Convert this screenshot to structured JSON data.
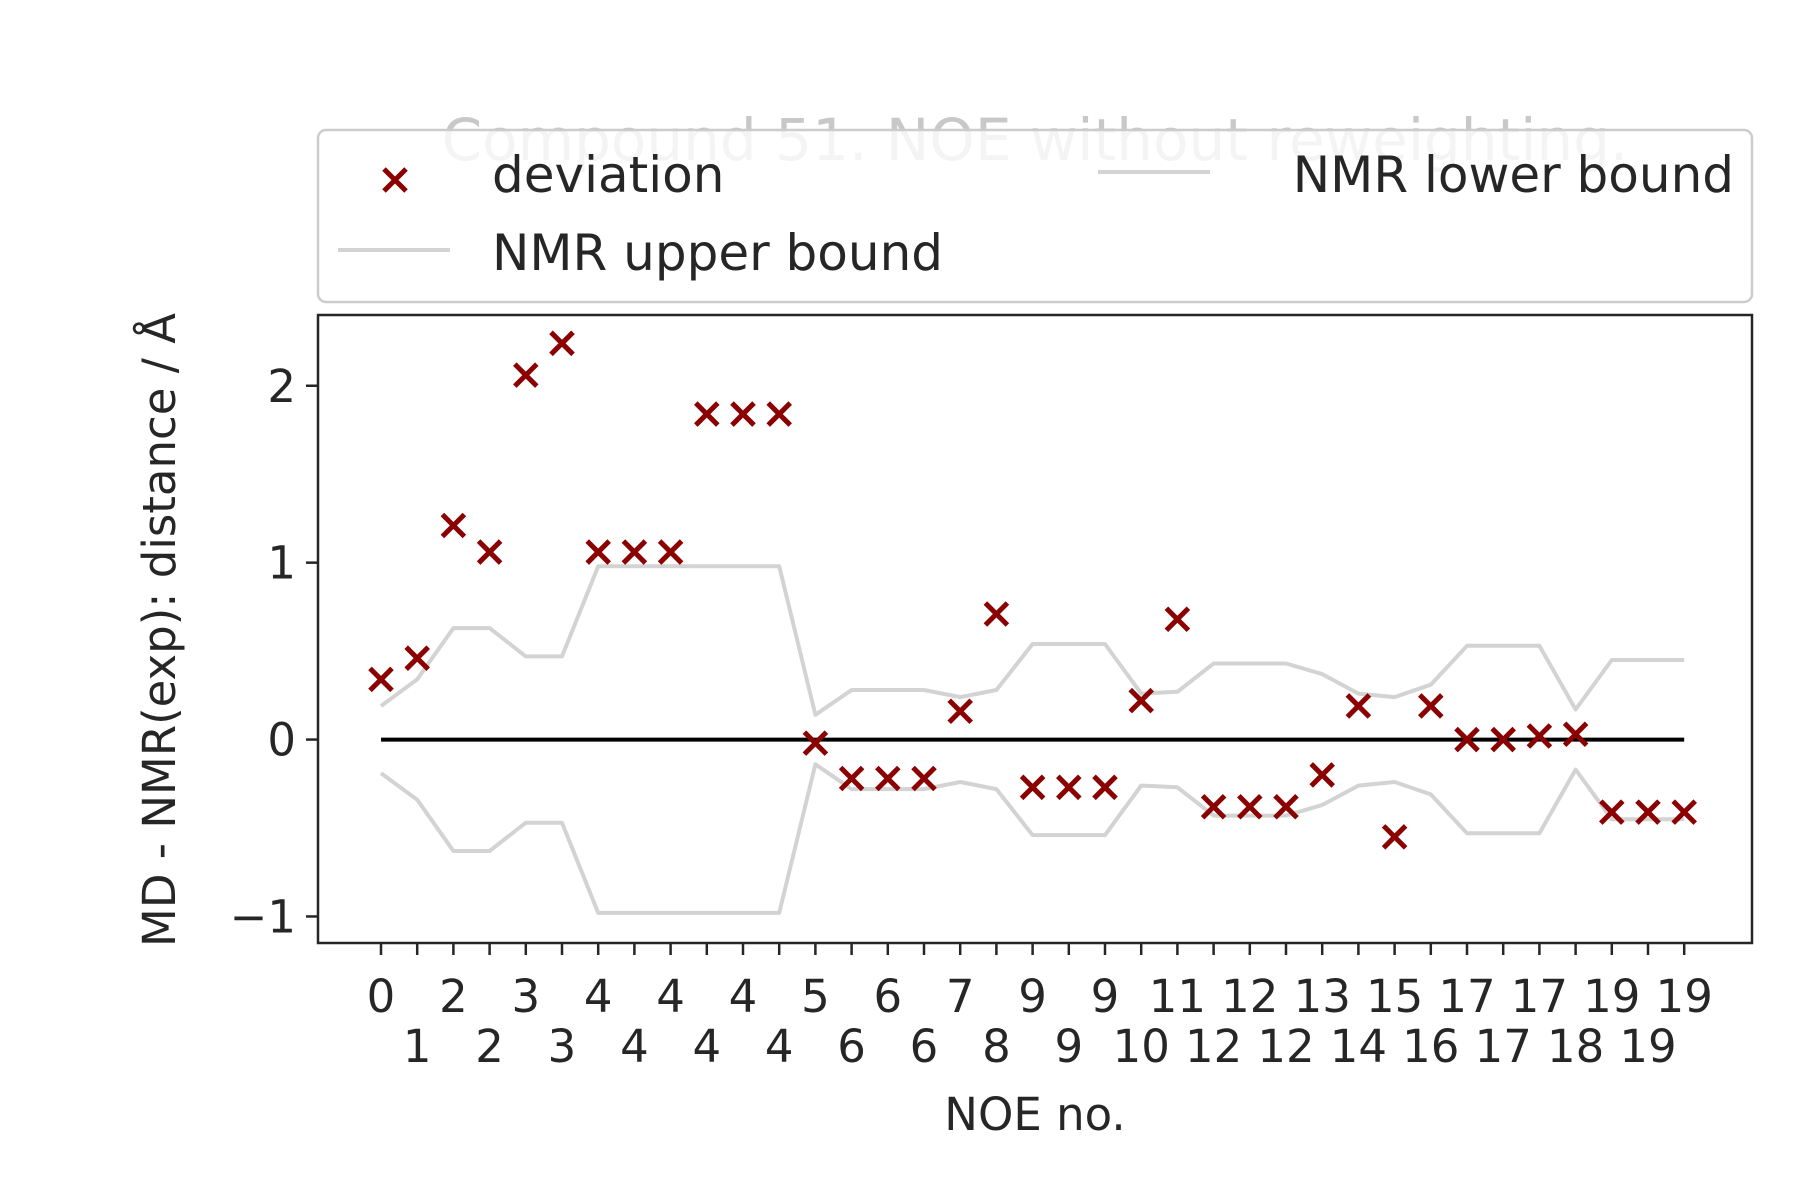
{
  "chart_data": {
    "type": "scatter",
    "title": "Compound 51. NOE without reweighting.",
    "xlabel": "NOE no.",
    "ylabel": "MD - NMR(exp): distance / Å",
    "ylim": [
      -1.15,
      2.4
    ],
    "yticks": [
      -1,
      0,
      1,
      2
    ],
    "ytick_labels": [
      "−1",
      "0",
      "1",
      "2"
    ],
    "grid": false,
    "legend_placement": "above plot, two columns",
    "colors": {
      "deviation": "#8b0000",
      "bounds": "#d3d3d3",
      "zero_line": "#000000",
      "frame": "#262626"
    },
    "xticks": [
      {
        "label": "0",
        "row": 0
      },
      {
        "label": "1",
        "row": 1
      },
      {
        "label": "2",
        "row": 0
      },
      {
        "label": "2",
        "row": 1
      },
      {
        "label": "3",
        "row": 0
      },
      {
        "label": "3",
        "row": 1
      },
      {
        "label": "4",
        "row": 0
      },
      {
        "label": "4",
        "row": 1
      },
      {
        "label": "4",
        "row": 0
      },
      {
        "label": "4",
        "row": 1
      },
      {
        "label": "4",
        "row": 0
      },
      {
        "label": "4",
        "row": 1
      },
      {
        "label": "5",
        "row": 0
      },
      {
        "label": "6",
        "row": 1
      },
      {
        "label": "6",
        "row": 0
      },
      {
        "label": "6",
        "row": 1
      },
      {
        "label": "7",
        "row": 0
      },
      {
        "label": "8",
        "row": 1
      },
      {
        "label": "9",
        "row": 0
      },
      {
        "label": "9",
        "row": 1
      },
      {
        "label": "9",
        "row": 0
      },
      {
        "label": "10",
        "row": 1
      },
      {
        "label": "11",
        "row": 0
      },
      {
        "label": "12",
        "row": 1
      },
      {
        "label": "12",
        "row": 0
      },
      {
        "label": "12",
        "row": 1
      },
      {
        "label": "13",
        "row": 0
      },
      {
        "label": "14",
        "row": 1
      },
      {
        "label": "15",
        "row": 0
      },
      {
        "label": "16",
        "row": 1
      },
      {
        "label": "17",
        "row": 0
      },
      {
        "label": "17",
        "row": 1
      },
      {
        "label": "17",
        "row": 0
      },
      {
        "label": "18",
        "row": 1
      },
      {
        "label": "19",
        "row": 0
      },
      {
        "label": "19",
        "row": 1
      },
      {
        "label": "19",
        "row": 0
      }
    ],
    "series": [
      {
        "name": "deviation",
        "marker": "x",
        "values": [
          0.34,
          0.46,
          1.21,
          1.06,
          2.06,
          2.24,
          1.06,
          1.06,
          1.06,
          1.84,
          1.84,
          1.84,
          -0.02,
          -0.22,
          -0.22,
          -0.22,
          0.16,
          0.71,
          -0.27,
          -0.27,
          -0.27,
          0.22,
          0.68,
          -0.38,
          -0.38,
          -0.38,
          -0.2,
          0.19,
          -0.55,
          0.19,
          0.0,
          0.0,
          0.02,
          0.03,
          -0.41,
          -0.41,
          -0.41
        ]
      },
      {
        "name": "NMR upper bound",
        "values": [
          0.19,
          0.34,
          0.63,
          0.63,
          0.47,
          0.47,
          0.98,
          0.98,
          0.98,
          0.98,
          0.98,
          0.98,
          0.14,
          0.28,
          0.28,
          0.28,
          0.24,
          0.28,
          0.54,
          0.54,
          0.54,
          0.26,
          0.27,
          0.43,
          0.43,
          0.43,
          0.37,
          0.26,
          0.24,
          0.31,
          0.53,
          0.53,
          0.53,
          0.17,
          0.45,
          0.45,
          0.45
        ]
      },
      {
        "name": "NMR lower bound",
        "values": [
          -0.19,
          -0.34,
          -0.63,
          -0.63,
          -0.47,
          -0.47,
          -0.98,
          -0.98,
          -0.98,
          -0.98,
          -0.98,
          -0.98,
          -0.14,
          -0.28,
          -0.28,
          -0.28,
          -0.24,
          -0.28,
          -0.54,
          -0.54,
          -0.54,
          -0.26,
          -0.27,
          -0.43,
          -0.43,
          -0.43,
          -0.37,
          -0.26,
          -0.24,
          -0.31,
          -0.53,
          -0.53,
          -0.53,
          -0.17,
          -0.45,
          -0.45,
          -0.45
        ]
      }
    ],
    "zero_line": 0,
    "legend": [
      {
        "label": "deviation",
        "type": "marker"
      },
      {
        "label": "NMR lower bound",
        "type": "line"
      },
      {
        "label": "NMR upper bound",
        "type": "line"
      }
    ]
  }
}
